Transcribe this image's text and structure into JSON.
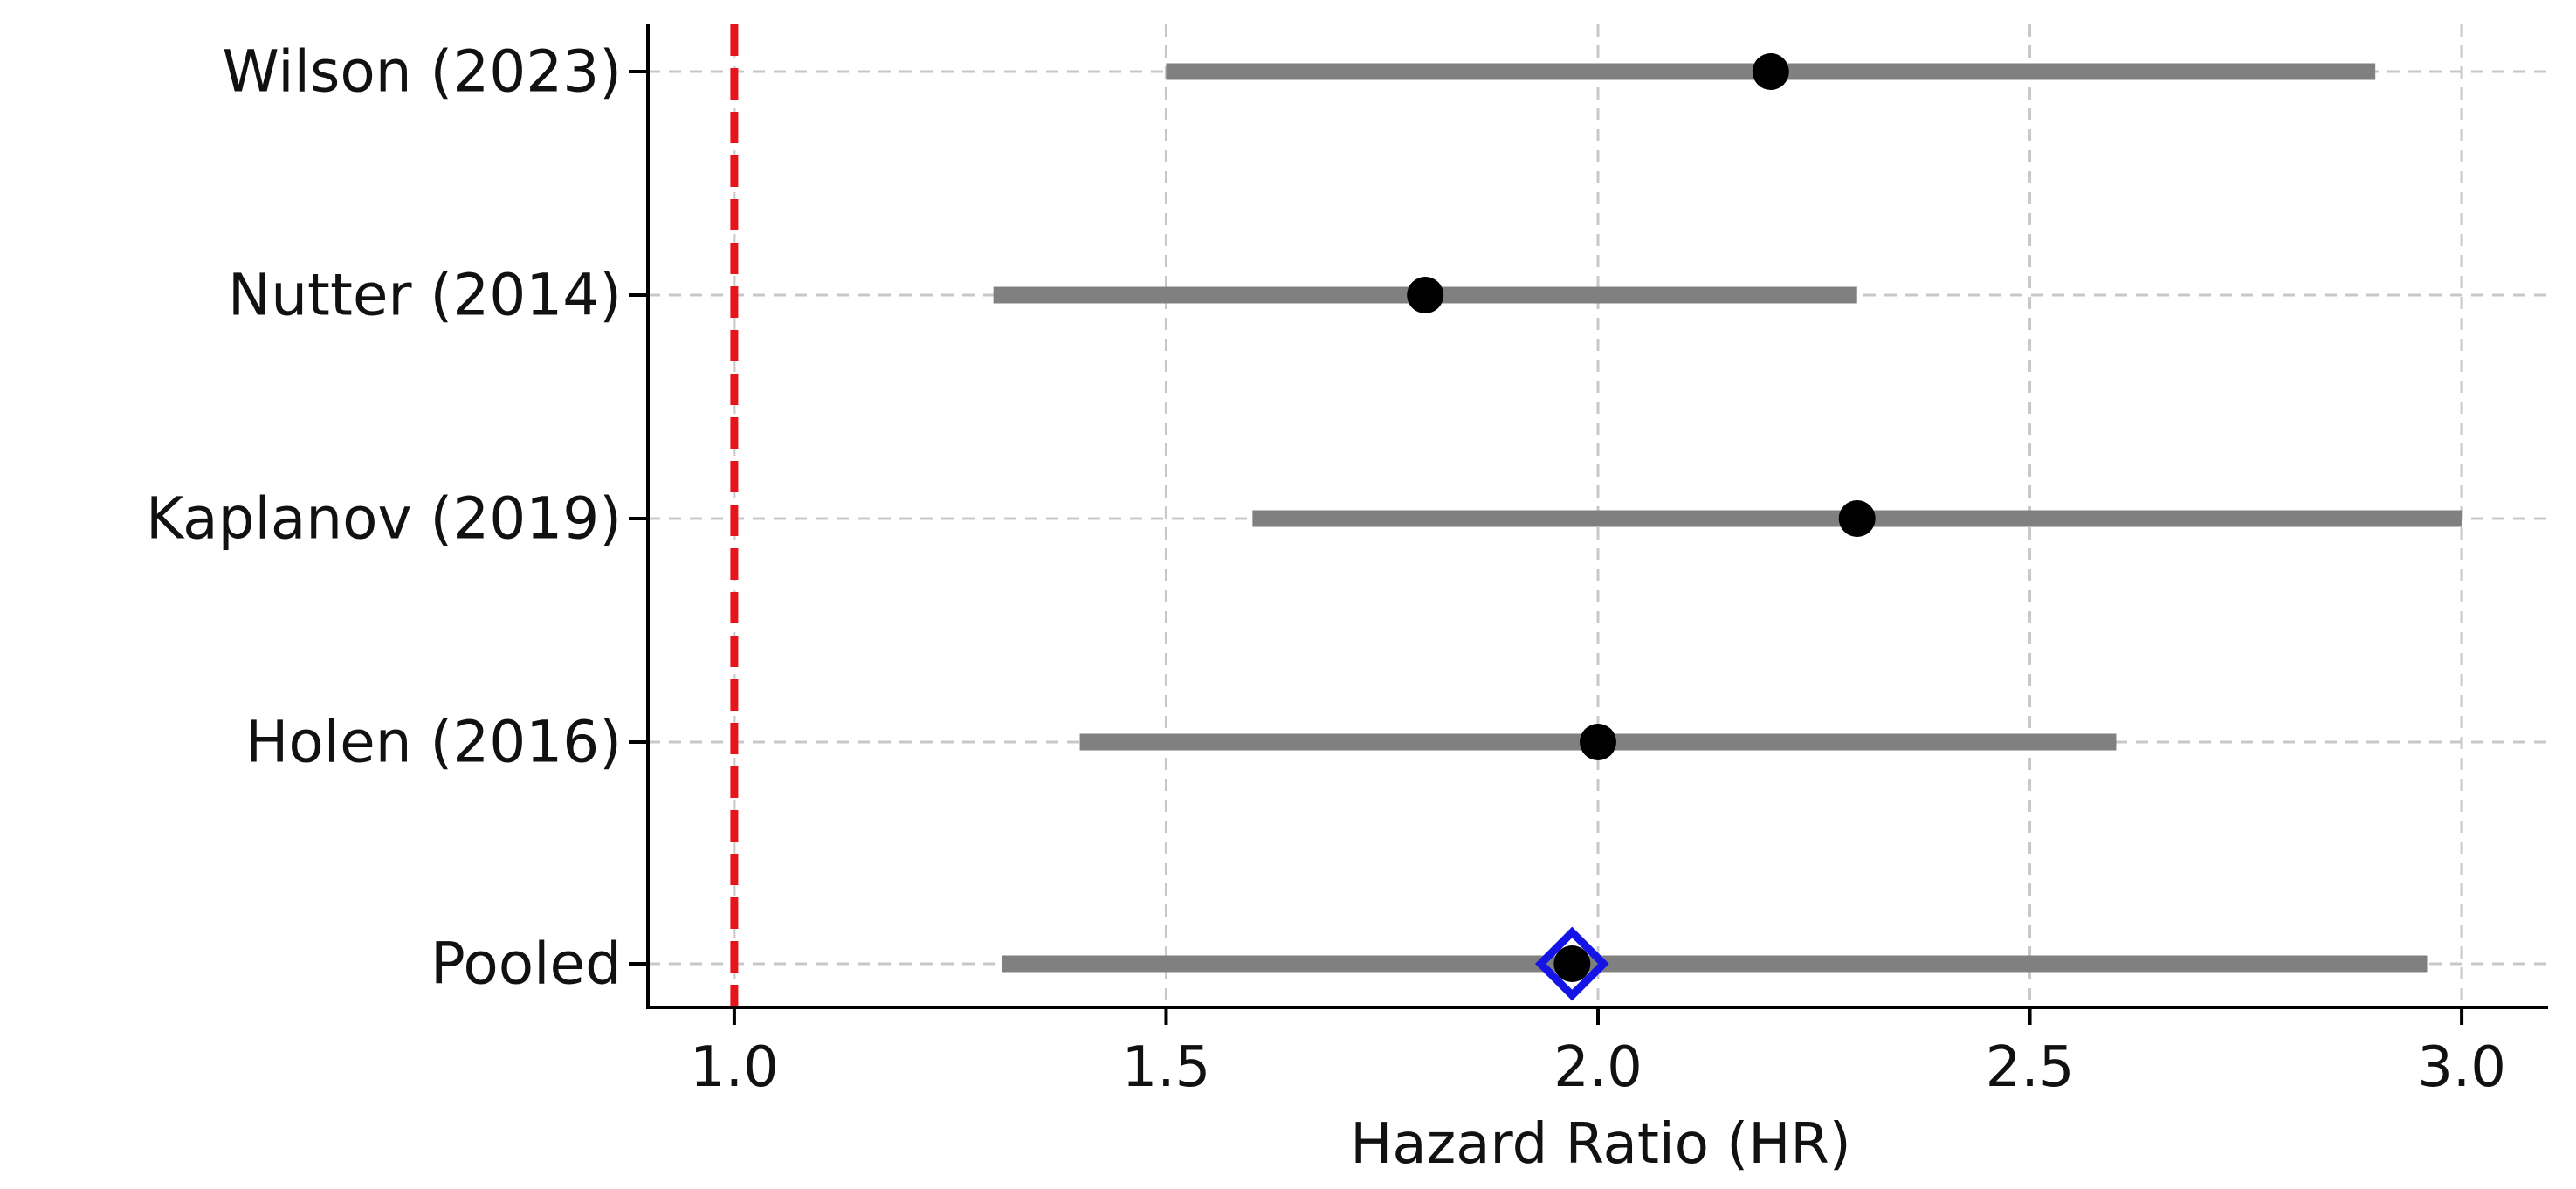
{
  "chart_data": {
    "type": "forest",
    "title": "",
    "xlabel": "Hazard Ratio (HR)",
    "ylabel": "",
    "xlim": [
      0.9,
      3.1
    ],
    "xticks": [
      "1.0",
      "1.5",
      "2.0",
      "2.5",
      "3.0"
    ],
    "grid": true,
    "reference_line": {
      "x": 1.0,
      "style": "dashed",
      "color": "#e8141b"
    },
    "studies": [
      {
        "label": "Wilson (2023)",
        "hr": 2.2,
        "ci_low": 1.5,
        "ci_high": 2.9,
        "marker": "circle"
      },
      {
        "label": "Nutter (2014)",
        "hr": 1.8,
        "ci_low": 1.3,
        "ci_high": 2.3,
        "marker": "circle"
      },
      {
        "label": "Kaplanov (2019)",
        "hr": 2.3,
        "ci_low": 1.6,
        "ci_high": 3.0,
        "marker": "circle"
      },
      {
        "label": "Holen (2016)",
        "hr": 2.0,
        "ci_low": 1.4,
        "ci_high": 2.6,
        "marker": "circle"
      },
      {
        "label": "Pooled",
        "hr": 1.97,
        "ci_low": 1.31,
        "ci_high": 2.96,
        "marker": "diamond"
      }
    ],
    "colors": {
      "ci_bar": "#808080",
      "point": "#000000",
      "pooled_outline": "#1414e6",
      "grid": "#c8c8c8",
      "axis": "#000000"
    }
  }
}
